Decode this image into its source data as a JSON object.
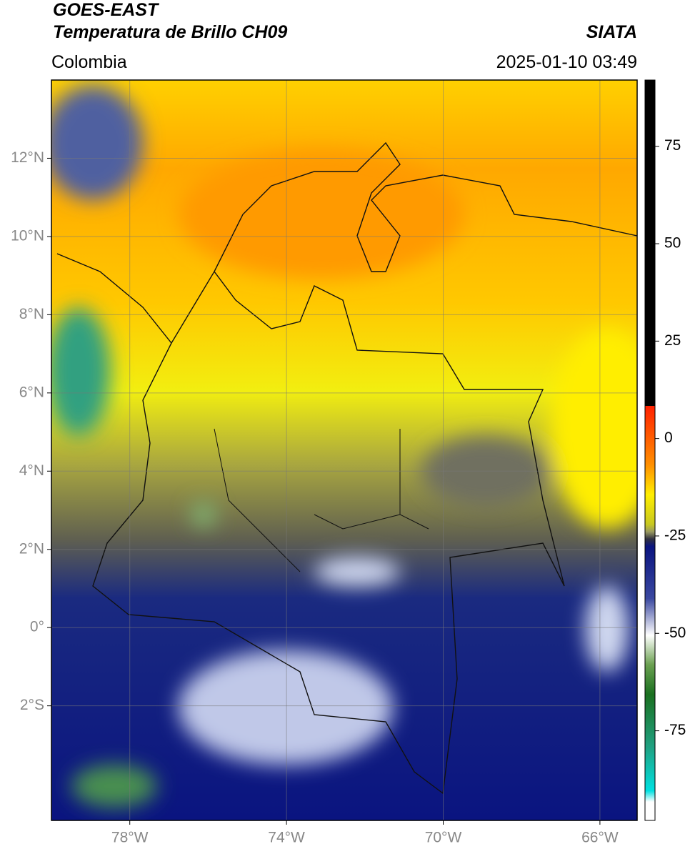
{
  "header": {
    "title": "GOES-EAST",
    "subtitle": "Temperatura de Brillo CH09",
    "region": "Colombia",
    "source": "SIATA",
    "datetime": "2025-01-10 03:49"
  },
  "map": {
    "lon_lim": [
      -80,
      -65.05
    ],
    "lat_lim": [
      -4.93,
      14
    ],
    "lon_ticks": [
      {
        "value": -78,
        "label": "78°W"
      },
      {
        "value": -74,
        "label": "74°W"
      },
      {
        "value": -70,
        "label": "70°W"
      },
      {
        "value": -66,
        "label": "66°W"
      }
    ],
    "lat_ticks": [
      {
        "value": 12,
        "label": "12°N"
      },
      {
        "value": 10,
        "label": "10°N"
      },
      {
        "value": 8,
        "label": "8°N"
      },
      {
        "value": 6,
        "label": "6°N"
      },
      {
        "value": 4,
        "label": "4°N"
      },
      {
        "value": 2,
        "label": "2°N"
      },
      {
        "value": 0,
        "label": "0°"
      },
      {
        "value": -2,
        "label": "2°S"
      }
    ]
  },
  "colorbar": {
    "lim": [
      -98,
      92
    ],
    "ticks": [
      75,
      50,
      25,
      0,
      -25,
      -50,
      -75
    ]
  }
}
